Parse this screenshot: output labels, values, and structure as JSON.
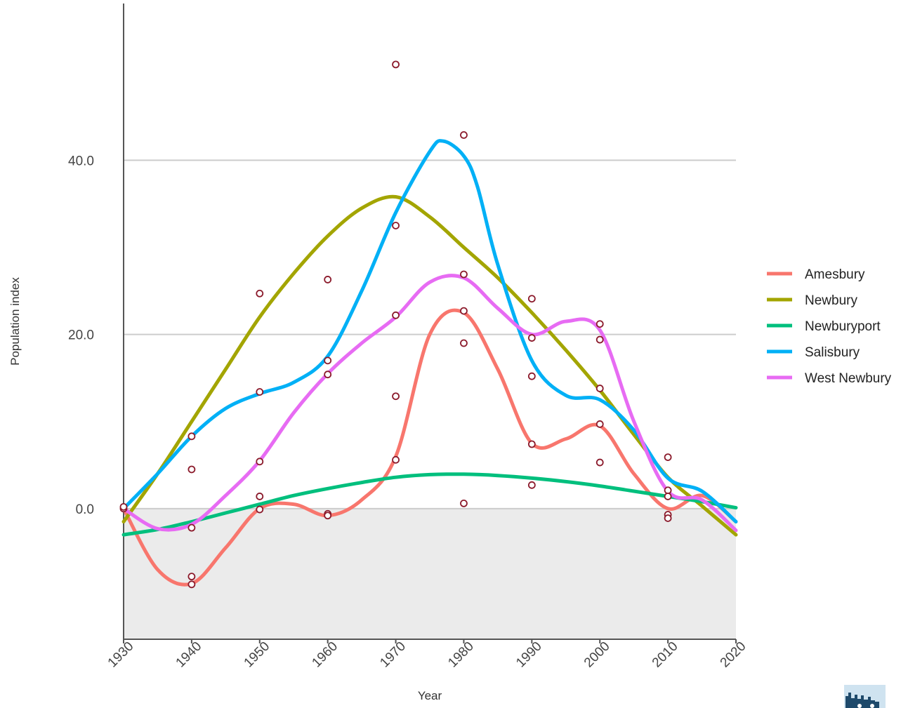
{
  "chart_data": {
    "type": "line",
    "xlabel": "Year",
    "ylabel": "Population index",
    "xlim": [
      1930,
      2020
    ],
    "ylim": [
      -15,
      58
    ],
    "x_ticks": [
      1930,
      1940,
      1950,
      1960,
      1970,
      1980,
      1990,
      2000,
      2010,
      2020
    ],
    "y_ticks": [
      0,
      20,
      40
    ],
    "y_tick_labels": [
      "0.0",
      "20.0",
      "40.0"
    ],
    "grid": true,
    "shaded_region": {
      "from": -15,
      "to": 0,
      "color": "#ebebeb"
    },
    "legend_position": "right",
    "point_color": "#8b1a2b",
    "series": [
      {
        "name": "Amesbury",
        "color": "#f8766d",
        "curve_x": [
          1930,
          1935,
          1940,
          1945,
          1950,
          1955,
          1960,
          1965,
          1970,
          1975,
          1980,
          1985,
          1990,
          1995,
          2000,
          2005,
          2010,
          2015,
          2020
        ],
        "curve_y": [
          0,
          -7,
          -8.6,
          -4.5,
          0,
          0.5,
          -0.8,
          1,
          6,
          20,
          22.5,
          16,
          7.5,
          8,
          9.5,
          4,
          0,
          1.5,
          -1.5
        ]
      },
      {
        "name": "Newbury",
        "color": "#a3a500",
        "curve_x": [
          1930,
          1935,
          1940,
          1945,
          1950,
          1955,
          1960,
          1965,
          1970,
          1975,
          1980,
          1985,
          1990,
          1995,
          2000,
          2005,
          2010,
          2015,
          2020
        ],
        "curve_y": [
          -1.5,
          4,
          10,
          16,
          22,
          27,
          31.3,
          34.5,
          35.8,
          33.5,
          30,
          26.5,
          22.5,
          18.2,
          13.6,
          8.5,
          3.6,
          0.3,
          -3
        ]
      },
      {
        "name": "Newburyport",
        "color": "#00bf7d",
        "curve_x": [
          1930,
          1935,
          1940,
          1945,
          1950,
          1955,
          1960,
          1965,
          1970,
          1975,
          1980,
          1985,
          1990,
          1995,
          2000,
          2005,
          2010,
          2015,
          2020
        ],
        "curve_y": [
          -3,
          -2.4,
          -1.5,
          -0.5,
          0.5,
          1.5,
          2.3,
          3,
          3.6,
          3.9,
          3.95,
          3.8,
          3.5,
          3.1,
          2.6,
          2,
          1.4,
          0.8,
          0.1
        ]
      },
      {
        "name": "Salisbury",
        "color": "#00b0f6",
        "curve_x": [
          1930,
          1935,
          1940,
          1945,
          1950,
          1955,
          1960,
          1965,
          1970,
          1975,
          1977,
          1980,
          1982,
          1985,
          1990,
          1995,
          2000,
          2005,
          2010,
          2015,
          2020
        ],
        "curve_y": [
          0,
          4,
          8.3,
          11.5,
          13.2,
          14.5,
          17.5,
          25,
          34,
          41,
          42.2,
          40.5,
          37,
          28,
          17,
          13,
          12.5,
          9,
          3.5,
          2,
          -1.5
        ]
      },
      {
        "name": "West Newbury",
        "color": "#e76bf3",
        "curve_x": [
          1930,
          1935,
          1940,
          1945,
          1950,
          1955,
          1960,
          1965,
          1970,
          1975,
          1980,
          1985,
          1990,
          1995,
          2000,
          2005,
          2010,
          2015,
          2020
        ],
        "curve_y": [
          0,
          -2.3,
          -1.8,
          1.5,
          5.5,
          11,
          15.5,
          19,
          22,
          26,
          26.5,
          23,
          20,
          21.5,
          20.5,
          10,
          2,
          1,
          -2.5
        ]
      }
    ],
    "points": [
      [
        1930,
        0
      ],
      [
        1930,
        0.2
      ],
      [
        1940,
        8.3
      ],
      [
        1940,
        4.5
      ],
      [
        1940,
        -2.2
      ],
      [
        1940,
        -7.8
      ],
      [
        1940,
        -8.7
      ],
      [
        1950,
        24.7
      ],
      [
        1950,
        13.4
      ],
      [
        1950,
        5.4
      ],
      [
        1950,
        1.4
      ],
      [
        1950,
        -0.1
      ],
      [
        1960,
        26.3
      ],
      [
        1960,
        17
      ],
      [
        1960,
        15.4
      ],
      [
        1960,
        -0.6
      ],
      [
        1960,
        -0.8
      ],
      [
        1970,
        51
      ],
      [
        1970,
        32.5
      ],
      [
        1970,
        22.2
      ],
      [
        1970,
        12.9
      ],
      [
        1970,
        5.6
      ],
      [
        1980,
        42.9
      ],
      [
        1980,
        26.9
      ],
      [
        1980,
        22.7
      ],
      [
        1980,
        19
      ],
      [
        1980,
        0.6
      ],
      [
        1990,
        24.1
      ],
      [
        1990,
        19.6
      ],
      [
        1990,
        15.2
      ],
      [
        1990,
        7.4
      ],
      [
        1990,
        2.7
      ],
      [
        2000,
        21.2
      ],
      [
        2000,
        19.4
      ],
      [
        2000,
        13.8
      ],
      [
        2000,
        9.7
      ],
      [
        2000,
        5.3
      ],
      [
        2010,
        5.9
      ],
      [
        2010,
        2.1
      ],
      [
        2010,
        1.4
      ],
      [
        2010,
        -0.7
      ],
      [
        2010,
        -1.1
      ]
    ]
  }
}
